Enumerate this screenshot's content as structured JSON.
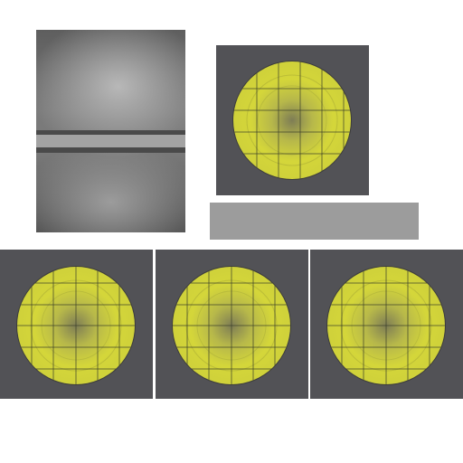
{
  "sprite_sheet": {
    "background": "#ffffff",
    "panel_texture": {
      "stripe_color_dark": "#4a4a4a",
      "stripe_color_light": "#a3a3a3"
    },
    "lens_tiles": [
      {
        "name": "lens-tile-top"
      },
      {
        "name": "lens-tile-bottom-left"
      },
      {
        "name": "lens-tile-bottom-center"
      },
      {
        "name": "lens-tile-bottom-right"
      }
    ],
    "colors": {
      "tile_background": "#525256",
      "lens_fill": "#d4d63a",
      "lens_edge": "#3c3c3c",
      "grid_line": "#3b3f2a",
      "bar_fill": "#9c9c9c"
    }
  }
}
